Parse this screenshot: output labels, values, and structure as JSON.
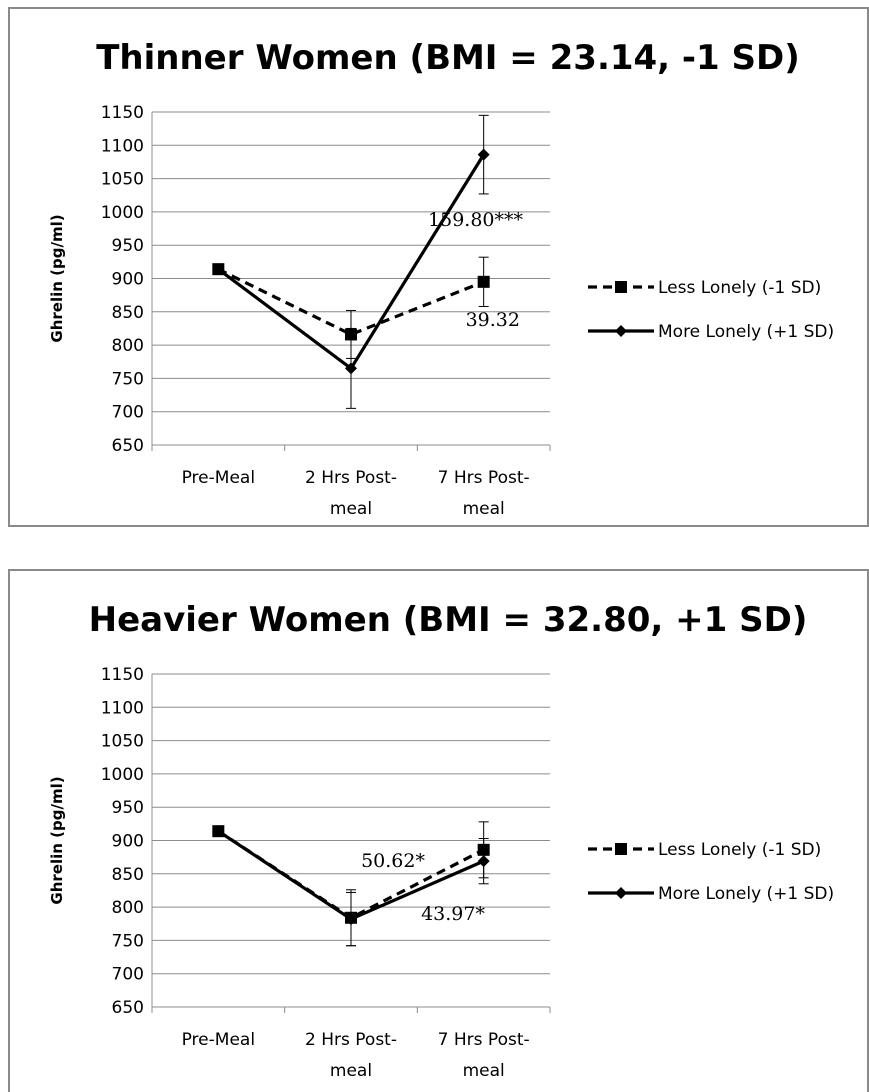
{
  "colors": {
    "line": "#000000",
    "grid": "#8c8c8c",
    "frame": "#8a8a8a"
  },
  "chart_data": [
    {
      "type": "line",
      "title": "Thinner Women (BMI = 23.14, -1 SD)",
      "ylabel": "Ghrelin (pg/ml)",
      "xlabel": "",
      "categories": [
        [
          "Pre-Meal"
        ],
        [
          "2 Hrs Post-",
          "meal"
        ],
        [
          "7 Hrs Post-",
          "meal"
        ]
      ],
      "ylim": [
        650,
        1150
      ],
      "yticks": [
        650,
        700,
        750,
        800,
        850,
        900,
        950,
        1000,
        1050,
        1100,
        1150
      ],
      "grid": true,
      "legend_position": "right",
      "series": [
        {
          "name": "Less Lonely (-1 SD)",
          "style": "dashed",
          "marker": "square",
          "values": [
            914,
            816,
            895
          ],
          "err": [
            null,
            36,
            37
          ]
        },
        {
          "name": "More Lonely (+1 SD)",
          "style": "solid",
          "marker": "diamond",
          "values": [
            914,
            765,
            1086
          ],
          "err": [
            null,
            60,
            59
          ]
        }
      ],
      "annotations": [
        {
          "text": "159.80***",
          "x": 2,
          "y": 983
        },
        {
          "text": "39.32",
          "x": 2,
          "y": 822
        }
      ]
    },
    {
      "type": "line",
      "title": "Heavier Women (BMI = 32.80, +1 SD)",
      "ylabel": "Ghrelin (pg/ml)",
      "xlabel": "",
      "categories": [
        [
          "Pre-Meal"
        ],
        [
          "2 Hrs Post-",
          "meal"
        ],
        [
          "7 Hrs Post-",
          "meal"
        ]
      ],
      "ylim": [
        650,
        1150
      ],
      "yticks": [
        650,
        700,
        750,
        800,
        850,
        900,
        950,
        1000,
        1050,
        1100,
        1150
      ],
      "grid": true,
      "legend_position": "right",
      "series": [
        {
          "name": "Less Lonely (-1 SD)",
          "style": "dashed",
          "marker": "square",
          "values": [
            914,
            784,
            886
          ],
          "err": [
            null,
            42,
            42
          ]
        },
        {
          "name": "More Lonely (+1 SD)",
          "style": "solid",
          "marker": "diamond",
          "values": [
            914,
            782,
            869
          ],
          "err": [
            null,
            40,
            34
          ]
        }
      ],
      "annotations": [
        {
          "text": "50.62*",
          "x": 1,
          "y": 855
        },
        {
          "text": "43.97*",
          "x": 2,
          "y": 793
        }
      ]
    }
  ]
}
